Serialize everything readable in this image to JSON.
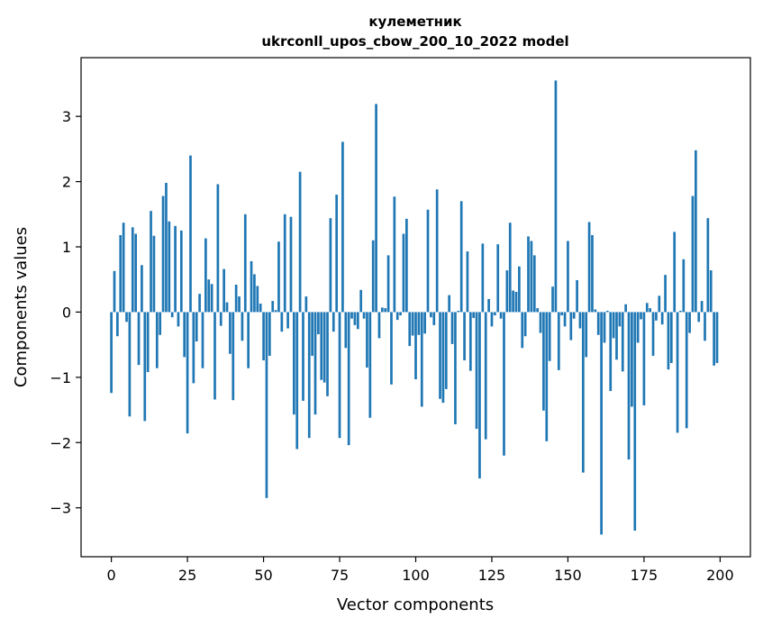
{
  "chart_data": {
    "type": "bar",
    "title": "кулеметник",
    "subtitle": "ukrconll_upos_cbow_200_10_2022 model",
    "xlabel": "Vector components",
    "ylabel": "Components values",
    "xlim": [
      -9.95,
      209.95
    ],
    "ylim": [
      -3.75,
      3.9
    ],
    "xticks": [
      0,
      25,
      50,
      75,
      100,
      125,
      150,
      175,
      200
    ],
    "yticks": [
      -3,
      -2,
      -1,
      0,
      1,
      2,
      3
    ],
    "xtick_labels": [
      "0",
      "25",
      "50",
      "75",
      "100",
      "125",
      "150",
      "175",
      "200"
    ],
    "ytick_labels": [
      "−3",
      "−2",
      "−1",
      "0",
      "1",
      "2",
      "3"
    ],
    "bar_color": "#1f77b4",
    "grid": false,
    "x": [
      0,
      1,
      2,
      3,
      4,
      5,
      6,
      7,
      8,
      9,
      10,
      11,
      12,
      13,
      14,
      15,
      16,
      17,
      18,
      19,
      20,
      21,
      22,
      23,
      24,
      25,
      26,
      27,
      28,
      29,
      30,
      31,
      32,
      33,
      34,
      35,
      36,
      37,
      38,
      39,
      40,
      41,
      42,
      43,
      44,
      45,
      46,
      47,
      48,
      49,
      50,
      51,
      52,
      53,
      54,
      55,
      56,
      57,
      58,
      59,
      60,
      61,
      62,
      63,
      64,
      65,
      66,
      67,
      68,
      69,
      70,
      71,
      72,
      73,
      74,
      75,
      76,
      77,
      78,
      79,
      80,
      81,
      82,
      83,
      84,
      85,
      86,
      87,
      88,
      89,
      90,
      91,
      92,
      93,
      94,
      95,
      96,
      97,
      98,
      99,
      100,
      101,
      102,
      103,
      104,
      105,
      106,
      107,
      108,
      109,
      110,
      111,
      112,
      113,
      114,
      115,
      116,
      117,
      118,
      119,
      120,
      121,
      122,
      123,
      124,
      125,
      126,
      127,
      128,
      129,
      130,
      131,
      132,
      133,
      134,
      135,
      136,
      137,
      138,
      139,
      140,
      141,
      142,
      143,
      144,
      145,
      146,
      147,
      148,
      149,
      150,
      151,
      152,
      153,
      154,
      155,
      156,
      157,
      158,
      159,
      160,
      161,
      162,
      163,
      164,
      165,
      166,
      167,
      168,
      169,
      170,
      171,
      172,
      173,
      174,
      175,
      176,
      177,
      178,
      179,
      180,
      181,
      182,
      183,
      184,
      185,
      186,
      187,
      188,
      189,
      190,
      191,
      192,
      193,
      194,
      195,
      196,
      197,
      198,
      199
    ],
    "values": [
      -1.24,
      0.63,
      -0.37,
      1.18,
      1.37,
      -0.15,
      -1.6,
      1.3,
      1.2,
      -0.81,
      0.72,
      -1.67,
      -0.92,
      1.55,
      1.17,
      -0.86,
      -0.35,
      1.78,
      1.98,
      1.39,
      -0.08,
      1.32,
      -0.22,
      1.25,
      -0.69,
      -1.86,
      2.4,
      -1.09,
      -0.45,
      0.28,
      -0.86,
      1.13,
      0.5,
      0.43,
      -1.34,
      1.96,
      -0.21,
      0.66,
      0.15,
      -0.64,
      -1.35,
      0.42,
      0.24,
      -0.44,
      1.5,
      -0.86,
      0.78,
      0.58,
      0.4,
      0.13,
      -0.74,
      -2.85,
      -0.67,
      0.17,
      0.03,
      1.08,
      -0.3,
      1.5,
      -0.25,
      1.46,
      -1.57,
      -2.1,
      2.15,
      -1.36,
      0.24,
      -1.93,
      -0.67,
      -1.57,
      -0.34,
      -1.04,
      -1.08,
      -1.29,
      1.44,
      -0.3,
      1.8,
      -1.93,
      2.61,
      -0.55,
      -2.04,
      -0.1,
      -0.2,
      -0.26,
      0.34,
      -0.1,
      -0.85,
      -1.62,
      1.1,
      3.19,
      -0.4,
      0.07,
      0.06,
      0.87,
      -1.11,
      1.77,
      -0.12,
      -0.05,
      1.2,
      1.43,
      -0.52,
      -0.36,
      -1.03,
      -0.35,
      -1.45,
      -0.33,
      1.57,
      -0.08,
      -0.2,
      1.88,
      -1.33,
      -1.39,
      -1.18,
      0.26,
      -0.49,
      -1.72,
      0.02,
      1.7,
      -0.74,
      0.93,
      -0.9,
      -0.09,
      -1.79,
      -2.55,
      1.05,
      -1.95,
      0.2,
      -0.22,
      -0.05,
      1.04,
      -0.1,
      -2.2,
      0.64,
      1.37,
      0.33,
      0.31,
      0.7,
      -0.55,
      -0.37,
      1.16,
      1.09,
      0.87,
      0.06,
      -0.32,
      -1.51,
      -1.98,
      -0.75,
      0.39,
      3.55,
      -0.89,
      -0.05,
      -0.22,
      1.09,
      -0.43,
      -0.1,
      0.49,
      -0.25,
      -2.46,
      -0.69,
      1.38,
      1.18,
      0.04,
      -0.35,
      -3.41,
      -0.47,
      0.02,
      -1.21,
      -0.4,
      -0.73,
      -0.22,
      -0.91,
      0.12,
      -2.26,
      -1.45,
      -3.35,
      -0.47,
      -0.11,
      -1.43,
      0.14,
      0.06,
      -0.67,
      -0.13,
      0.25,
      -0.19,
      0.57,
      -0.88,
      -0.78,
      1.23,
      -1.85,
      0.02,
      0.81,
      -1.78,
      -0.32,
      1.78,
      2.48,
      -0.15,
      0.17,
      -0.44,
      1.44,
      0.64,
      -0.82,
      -0.78
    ]
  }
}
